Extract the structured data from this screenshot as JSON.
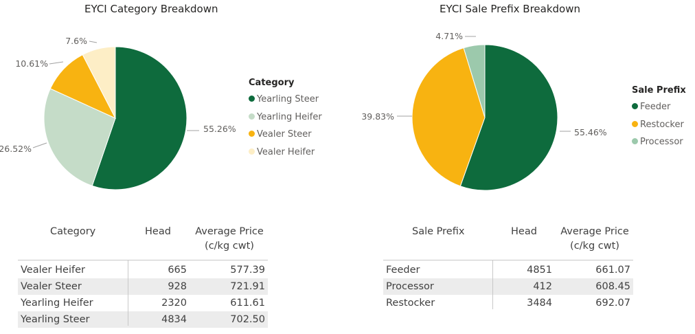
{
  "chart_data": [
    {
      "type": "pie",
      "title": "EYCI Category Breakdown",
      "legend_title": "Category",
      "legend_position": "right",
      "categories": [
        "Yearling Steer",
        "Yearling Heifer",
        "Vealer Steer",
        "Vealer Heifer"
      ],
      "values": [
        55.26,
        26.52,
        10.61,
        7.6
      ],
      "labels": [
        "55.26%",
        "26.52%",
        "10.61%",
        "7.6%"
      ],
      "colors": [
        "#0e6b3d",
        "#c5dcc8",
        "#f8b311",
        "#fdeec6"
      ]
    },
    {
      "type": "pie",
      "title": "EYCI Sale Prefix Breakdown",
      "legend_title": "Sale Prefix",
      "legend_position": "right",
      "categories": [
        "Feeder",
        "Restocker",
        "Processor"
      ],
      "values": [
        55.46,
        39.83,
        4.71
      ],
      "labels": [
        "55.46%",
        "39.83%",
        "4.71%"
      ],
      "colors": [
        "#0e6b3d",
        "#f8b311",
        "#9cc9ac"
      ]
    },
    {
      "type": "table",
      "columns": [
        "Category",
        "Head",
        "Average Price",
        "(c/kg cwt)"
      ],
      "rows": [
        [
          "Vealer Heifer",
          "665",
          "577.39"
        ],
        [
          "Vealer Steer",
          "928",
          "721.91"
        ],
        [
          "Yearling Heifer",
          "2320",
          "611.61"
        ],
        [
          "Yearling Steer",
          "4834",
          "702.50"
        ]
      ]
    },
    {
      "type": "table",
      "columns": [
        "Sale Prefix",
        "Head",
        "Average Price",
        "(c/kg cwt)"
      ],
      "rows": [
        [
          "Feeder",
          "4851",
          "661.07"
        ],
        [
          "Processor",
          "412",
          "608.45"
        ],
        [
          "Restocker",
          "3484",
          "692.07"
        ]
      ]
    }
  ]
}
